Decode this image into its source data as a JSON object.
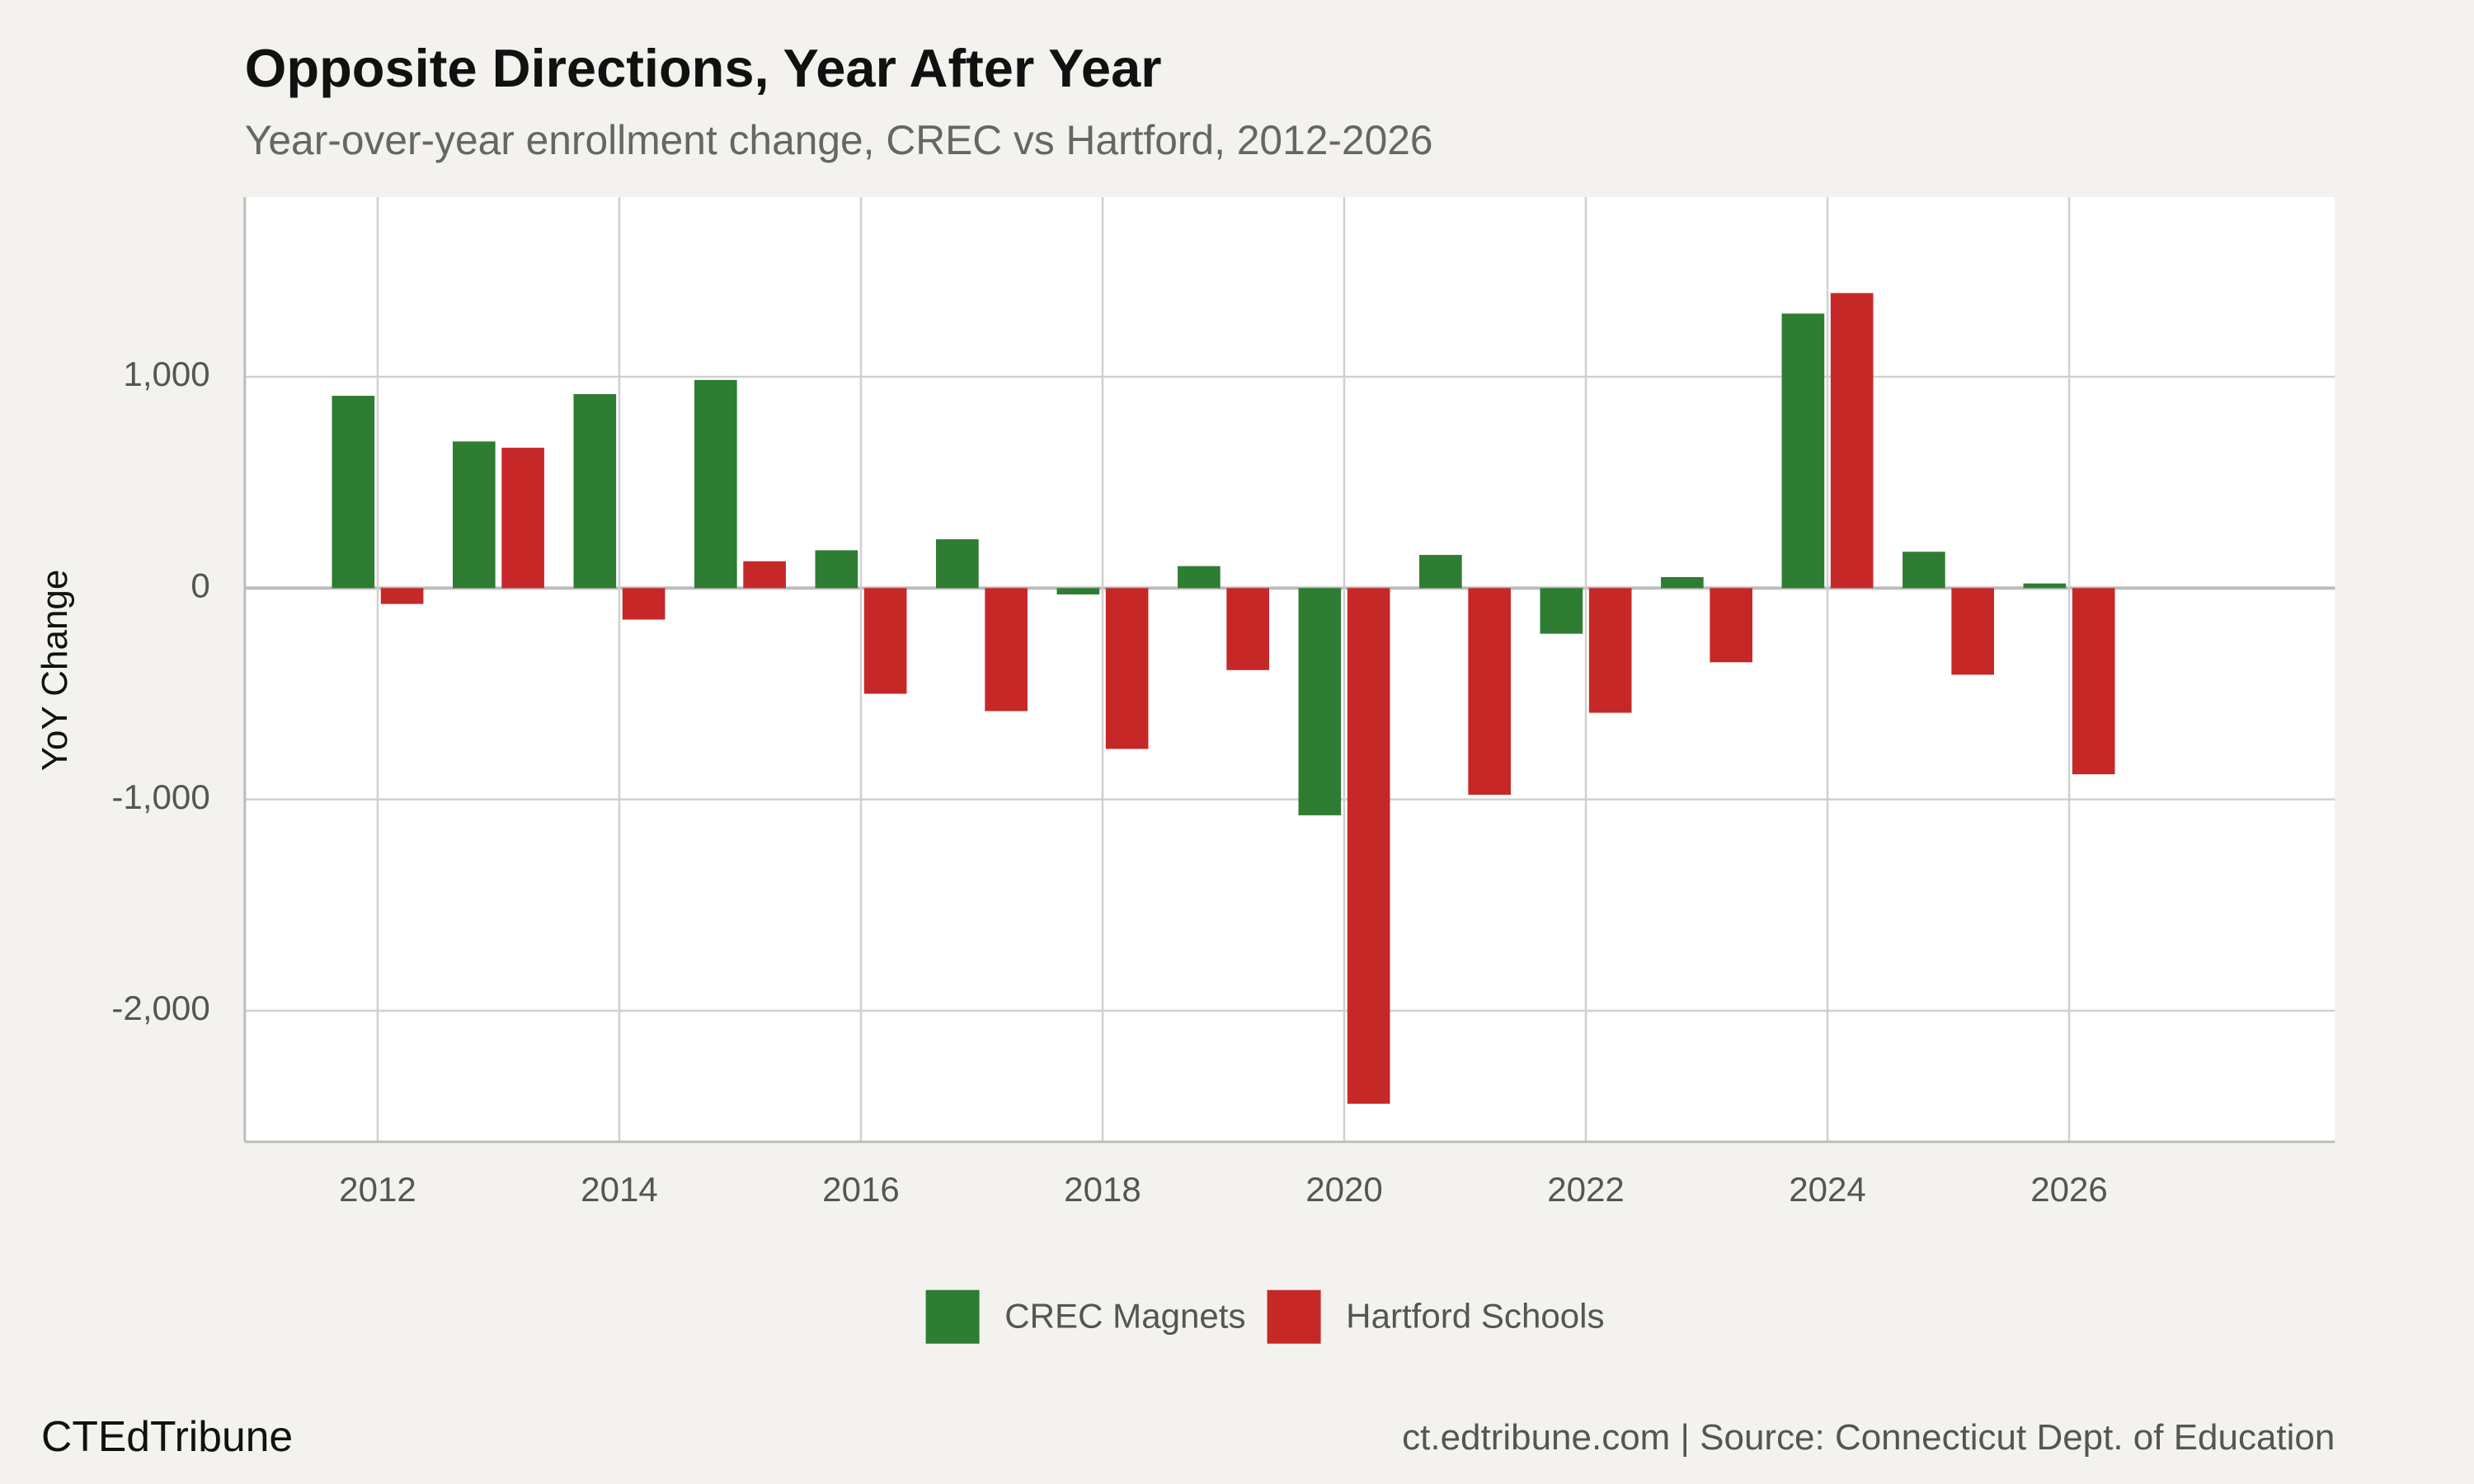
{
  "chart_data": {
    "type": "bar",
    "title": "Opposite Directions, Year After Year",
    "subtitle": "Year-over-year enrollment change, CREC vs Hartford, 2012-2026",
    "y_label": "YoY Change",
    "x": [
      2012,
      2013,
      2014,
      2015,
      2016,
      2017,
      2018,
      2019,
      2020,
      2021,
      2022,
      2023,
      2024,
      2025,
      2026
    ],
    "series": [
      {
        "name": "CREC Magnets",
        "color": "#2e7d32",
        "values": [
          910,
          694,
          918,
          985,
          179,
          231,
          -30,
          104,
          -1075,
          157,
          -216,
          52,
          1299,
          172,
          22
        ]
      },
      {
        "name": "Hartford Schools",
        "color": "#c62828",
        "values": [
          -75,
          664,
          -149,
          127,
          -500,
          -582,
          -761,
          -388,
          -2440,
          -978,
          -590,
          -351,
          1396,
          -410,
          -881
        ]
      }
    ],
    "xlim": [
      2010.9,
      2028.2
    ],
    "xticks": [
      2012,
      2014,
      2016,
      2018,
      2020,
      2022,
      2024,
      2026
    ],
    "ylim": [
      -2620,
      1850
    ],
    "yticks": [
      {
        "value": -2000,
        "label": "-2,000"
      },
      {
        "value": -1000,
        "label": "-1,000"
      },
      0,
      {
        "value": 1000,
        "label": "1,000"
      }
    ],
    "grid": true,
    "legend": "bottom",
    "brand": "CTEdTribune",
    "source": "ct.edtribune.com | Source: Connecticut Dept. of Education"
  }
}
